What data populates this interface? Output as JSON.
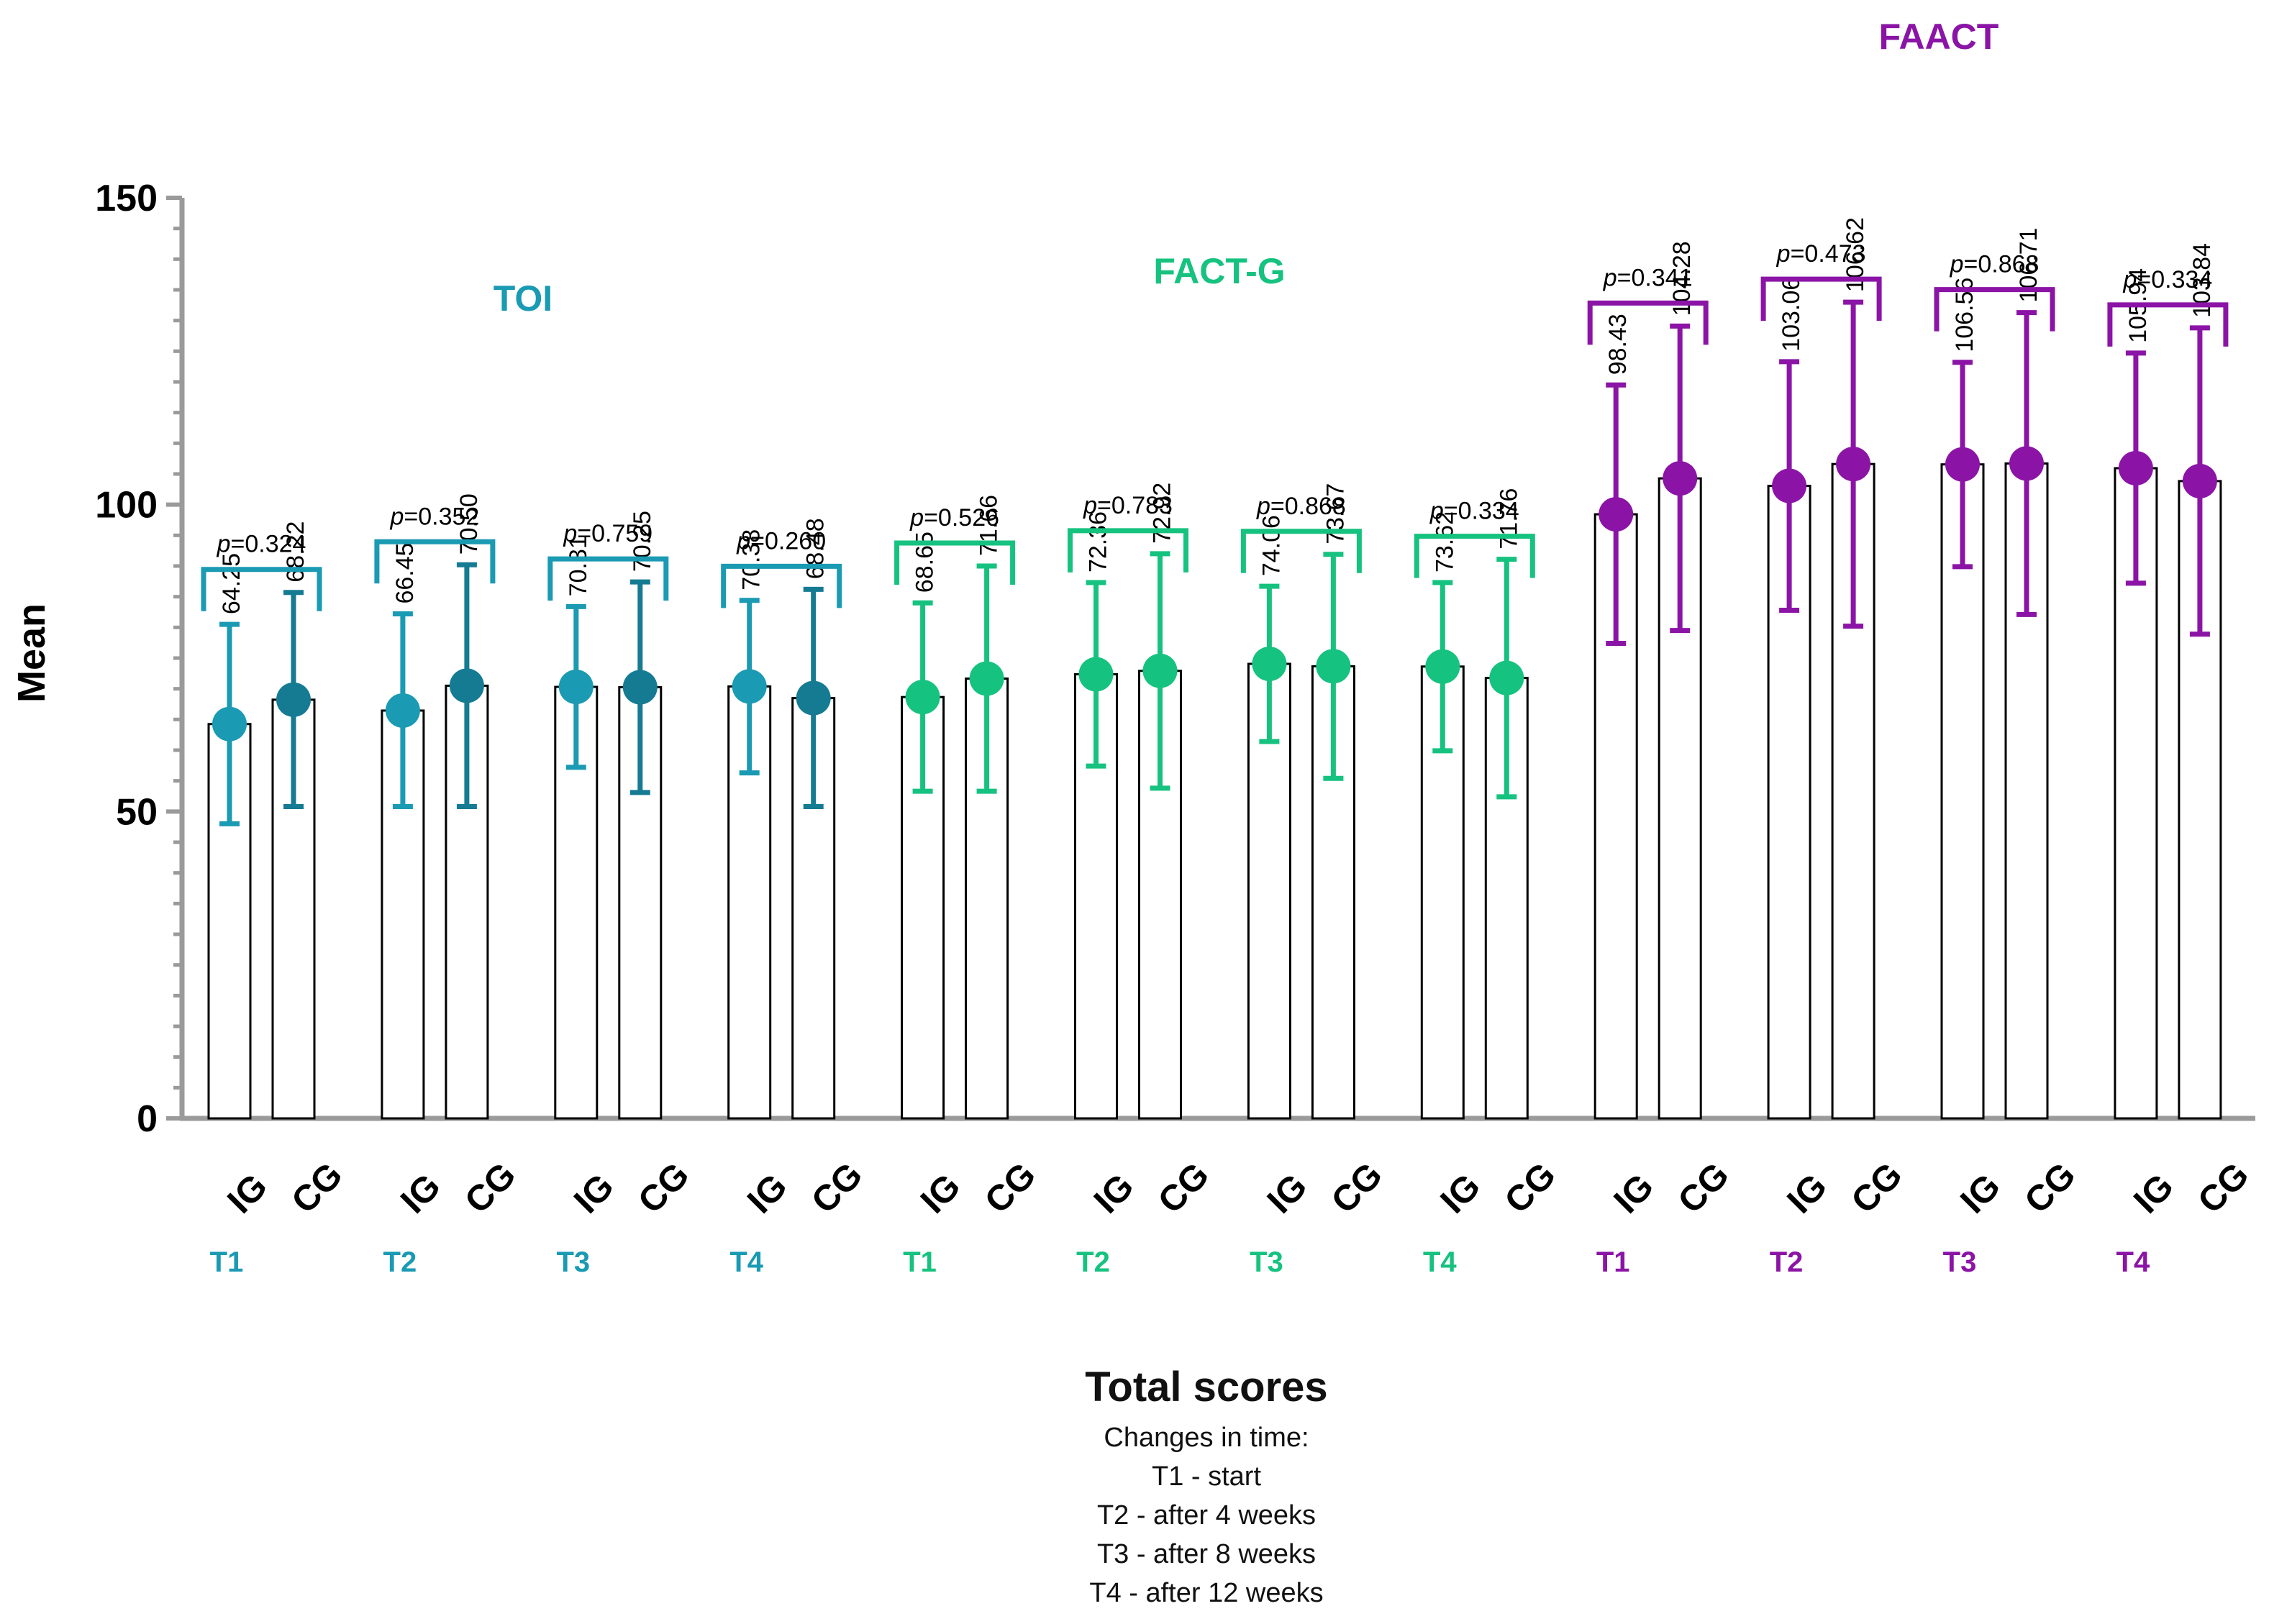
{
  "chart_data": {
    "type": "bar",
    "ylabel": "Mean",
    "ylim": [
      0,
      150
    ],
    "y_ticks": [
      "0",
      "50",
      "100",
      "150"
    ],
    "colors": {
      "TOI": "#1a9ab3",
      "TOI_dark": "#157b93",
      "FACT-G": "#16c27f",
      "FAACT": "#8b14a6"
    },
    "groups": [
      {
        "name": "TOI",
        "color_key": "TOI",
        "timepoints": [
          {
            "label": "T1",
            "p": "=0.324",
            "IG": {
              "mean": 64.25,
              "lo": 48.0,
              "hi": 80.5,
              "label": "64.25"
            },
            "CG": {
              "mean": 68.22,
              "lo": 50.8,
              "hi": 85.7,
              "label": "68.22"
            }
          },
          {
            "label": "T2",
            "p": "=0.352",
            "IG": {
              "mean": 66.45,
              "lo": 50.8,
              "hi": 82.2,
              "label": "66.45"
            },
            "CG": {
              "mean": 70.5,
              "lo": 50.8,
              "hi": 90.2,
              "label": "70.50"
            }
          },
          {
            "label": "T3",
            "p": "=0.759",
            "IG": {
              "mean": 70.31,
              "lo": 57.2,
              "hi": 83.4,
              "label": "70.31"
            },
            "CG": {
              "mean": 70.25,
              "lo": 53.1,
              "hi": 87.4,
              "label": "70.25"
            }
          },
          {
            "label": "T4",
            "p": "=0.260",
            "IG": {
              "mean": 70.38,
              "lo": 56.3,
              "hi": 84.4,
              "label": "70.38"
            },
            "CG": {
              "mean": 68.48,
              "lo": 50.8,
              "hi": 86.2,
              "label": "68.48"
            }
          }
        ]
      },
      {
        "name": "FACT-G",
        "color_key": "FACT-G",
        "timepoints": [
          {
            "label": "T1",
            "p": "=0.526",
            "IG": {
              "mean": 68.65,
              "lo": 53.3,
              "hi": 84.0,
              "label": "68.65"
            },
            "CG": {
              "mean": 71.66,
              "lo": 53.3,
              "hi": 90.0,
              "label": "71.66"
            }
          },
          {
            "label": "T2",
            "p": "=0.783",
            "IG": {
              "mean": 72.36,
              "lo": 57.4,
              "hi": 87.3,
              "label": "72.36"
            },
            "CG": {
              "mean": 72.92,
              "lo": 53.8,
              "hi": 92.0,
              "label": "72.92"
            }
          },
          {
            "label": "T3",
            "p": "=0.868",
            "IG": {
              "mean": 74.06,
              "lo": 61.4,
              "hi": 86.7,
              "label": "74.06"
            },
            "CG": {
              "mean": 73.67,
              "lo": 55.4,
              "hi": 91.9,
              "label": "73.67"
            }
          },
          {
            "label": "T4",
            "p": "=0.334",
            "IG": {
              "mean": 73.62,
              "lo": 59.9,
              "hi": 87.3,
              "label": "73.62"
            },
            "CG": {
              "mean": 71.76,
              "lo": 52.4,
              "hi": 91.1,
              "label": "71.76"
            }
          }
        ]
      },
      {
        "name": "FAACT",
        "color_key": "FAACT",
        "timepoints": [
          {
            "label": "T1",
            "p": "=0.341",
            "IG": {
              "mean": 98.43,
              "lo": 77.4,
              "hi": 119.5,
              "label": "98.43"
            },
            "CG": {
              "mean": 104.28,
              "lo": 79.5,
              "hi": 129.1,
              "label": "104.28"
            }
          },
          {
            "label": "T2",
            "p": "=0.473",
            "IG": {
              "mean": 103.06,
              "lo": 82.8,
              "hi": 123.3,
              "label": "103.06"
            },
            "CG": {
              "mean": 106.62,
              "lo": 80.2,
              "hi": 133.0,
              "label": "106.62"
            }
          },
          {
            "label": "T3",
            "p": "=0.868",
            "IG": {
              "mean": 106.56,
              "lo": 89.9,
              "hi": 123.2,
              "label": "106.56"
            },
            "CG": {
              "mean": 106.71,
              "lo": 82.1,
              "hi": 131.3,
              "label": "106.71"
            }
          },
          {
            "label": "T4",
            "p": "=0.334",
            "IG": {
              "mean": 105.94,
              "lo": 87.2,
              "hi": 124.7,
              "label": "105.94"
            },
            "CG": {
              "mean": 103.84,
              "lo": 78.9,
              "hi": 128.8,
              "label": "103.84"
            }
          }
        ]
      }
    ],
    "category_labels": {
      "IG": "IG",
      "CG": "CG"
    },
    "p_prefix": "p"
  },
  "caption": {
    "title": "Total scores",
    "subtitle": "Changes in time:",
    "lines": [
      "T1 - start",
      "T2 - after 4 weeks",
      "T3 - after 8 weeks",
      "T4 - after 12 weeks"
    ]
  }
}
